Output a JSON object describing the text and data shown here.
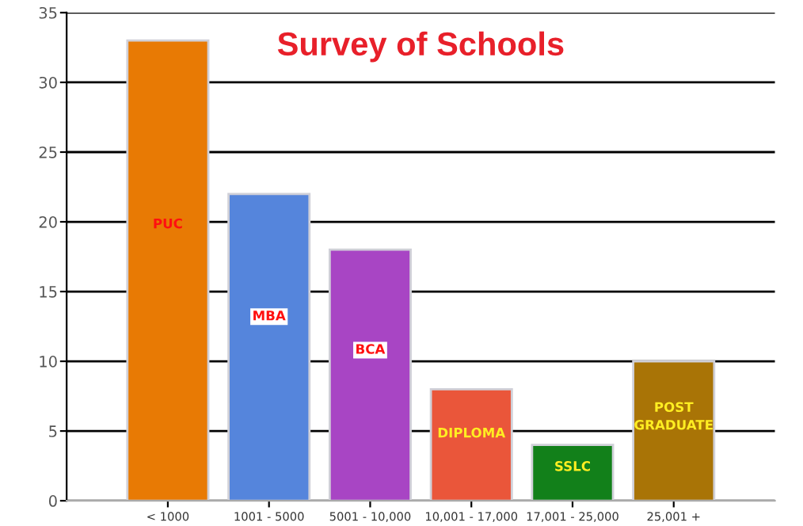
{
  "chart_data": {
    "type": "bar",
    "title": "Survey of Schools",
    "categories": [
      "< 1000",
      "1001 - 5000",
      "5001 - 10,000",
      "10,001 - 17,000",
      "17,001 - 25,000",
      "25,001 +"
    ],
    "values": [
      33,
      22,
      18,
      8,
      4,
      10
    ],
    "colors": [
      "#e87a04",
      "#5585dc",
      "#a845c4",
      "#ea563a",
      "#12801a",
      "#a97406"
    ],
    "ylim": [
      0,
      35
    ],
    "yticks": [
      0,
      5,
      10,
      15,
      20,
      25,
      30,
      35
    ],
    "grid": "y",
    "annotations": [
      "PUC",
      "MBA",
      "BCA",
      "DIPLOMA",
      "SSLC",
      "POST\nGRADUATE"
    ]
  }
}
